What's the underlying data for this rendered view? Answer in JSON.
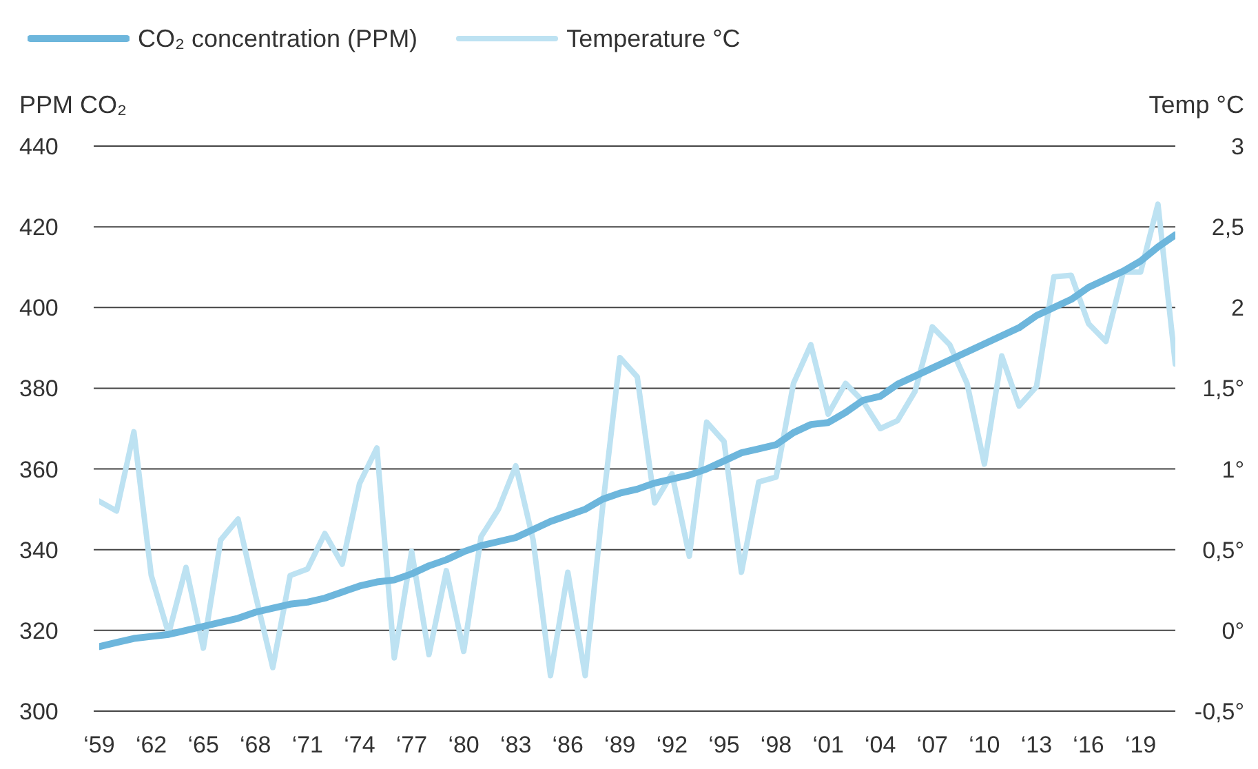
{
  "chart_data": {
    "type": "line",
    "ylabel": "PPM CO₂",
    "y2label": "Temp °C",
    "categories": [
      "‘59",
      null,
      null,
      "‘62",
      null,
      null,
      "‘65",
      null,
      null,
      "‘68",
      null,
      null,
      "‘71",
      null,
      null,
      "‘74",
      null,
      null,
      "‘77",
      null,
      null,
      "‘80",
      null,
      null,
      "‘83",
      null,
      null,
      "‘86",
      null,
      null,
      "‘89",
      null,
      null,
      "‘92",
      null,
      null,
      "‘95",
      null,
      null,
      "‘98",
      null,
      null,
      "‘01",
      null,
      null,
      "‘04",
      null,
      null,
      "‘07",
      null,
      null,
      "‘10",
      null,
      null,
      "‘13",
      null,
      null,
      "‘16",
      null,
      null,
      "‘19",
      null,
      null
    ],
    "series": [
      {
        "name": "CO₂ concentration (PPM)",
        "color": "#6db6dc",
        "values": [
          316,
          317,
          318,
          318.5,
          319,
          320,
          321,
          322,
          323,
          324.5,
          325.5,
          326.5,
          327,
          328,
          329.5,
          331,
          332,
          332.5,
          334,
          336,
          337.5,
          339.5,
          341,
          342,
          343,
          345,
          347,
          348.5,
          350,
          352.5,
          354,
          355,
          356.5,
          357.5,
          358.5,
          360,
          362,
          364,
          365,
          366,
          369,
          371,
          371.5,
          374,
          377,
          378,
          381,
          383,
          385,
          387,
          389,
          391,
          393,
          395,
          398,
          400,
          402,
          405,
          407,
          409,
          411.5,
          415,
          418
        ]
      },
      {
        "name": "Temperature °C",
        "color": "#bde2f2",
        "axis": "y2",
        "values": [
          0.8,
          0.74,
          1.23,
          0.34,
          -0.02,
          0.39,
          -0.11,
          0.56,
          0.69,
          0.22,
          -0.23,
          0.34,
          0.38,
          0.6,
          0.41,
          0.91,
          1.13,
          -0.17,
          0.49,
          -0.15,
          0.37,
          -0.13,
          0.58,
          0.75,
          1.02,
          0.56,
          -0.28,
          0.36,
          -0.28,
          0.76,
          1.69,
          1.57,
          0.79,
          0.97,
          0.46,
          1.29,
          1.17,
          0.36,
          0.92,
          0.95,
          1.53,
          1.77,
          1.34,
          1.53,
          1.42,
          1.25,
          1.3,
          1.48,
          1.88,
          1.77,
          1.53,
          1.03,
          1.7,
          1.39,
          1.51,
          2.19,
          2.2,
          1.9,
          1.79,
          2.22,
          2.22,
          2.64,
          1.65
        ]
      }
    ],
    "ylim": [
      300,
      440
    ],
    "yticks": [
      300,
      320,
      340,
      360,
      380,
      400,
      420,
      440
    ],
    "y2lim": [
      -0.5,
      3
    ],
    "y2ticks": [
      {
        "value": -0.5,
        "label": "-0,5°"
      },
      {
        "value": 0,
        "label": "0°"
      },
      {
        "value": 0.5,
        "label": "0,5°"
      },
      {
        "value": 1,
        "label": "1°"
      },
      {
        "value": 1.5,
        "label": "1,5°"
      },
      {
        "value": 2,
        "label": "2"
      },
      {
        "value": 2.5,
        "label": "2,5"
      },
      {
        "value": 3,
        "label": "3"
      }
    ],
    "grid": "y",
    "legend": "top left",
    "marker": "none",
    "line_style": "solid"
  }
}
